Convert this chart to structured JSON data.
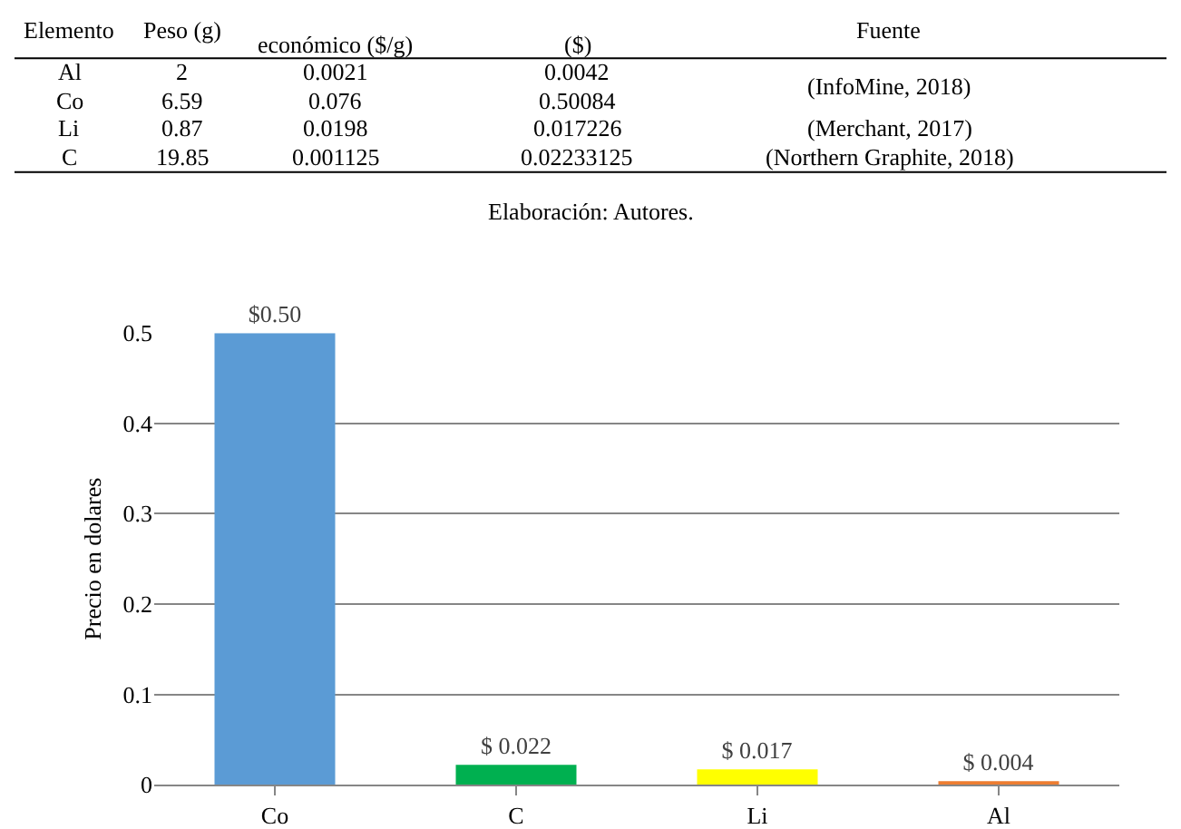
{
  "chart_data": [
    {
      "type": "other",
      "categories": [
        "Elemento",
        "Peso (g)",
        "económico ($/g)",
        "($)",
        "Fuente"
      ],
      "cells": [
        [
          "Al",
          "2",
          "0.0021",
          "0.0042",
          "(InfoMine, 2018)"
        ],
        [
          "Co",
          "6.59",
          "0.076",
          "0.50084",
          null
        ],
        [
          "Li",
          "0.87",
          "0.0198",
          "0.017226",
          "(Merchant, 2017)"
        ],
        [
          "C",
          "19.85",
          "0.001125",
          "0.02233125",
          "(Northern Graphite, 2018)"
        ]
      ],
      "annotations": [
        "Elaboración: Autores."
      ]
    },
    {
      "type": "bar",
      "categories": [
        "Co",
        "C",
        "Li",
        "Al"
      ],
      "values": [
        0.5,
        0.022,
        0.017,
        0.004
      ],
      "colors": [
        "#5b9bd5",
        "#00b050",
        "#ffff00",
        "#ed7d31"
      ],
      "value_labels": [
        "$0.50",
        "$ 0.022",
        "$ 0.017",
        "$ 0.004"
      ],
      "ylabel": "Precio en dolares",
      "ylim": [
        0,
        0.5
      ],
      "yticks": [
        0,
        0.1,
        0.2,
        0.3,
        0.4,
        0.5
      ],
      "grid": "y"
    }
  ]
}
